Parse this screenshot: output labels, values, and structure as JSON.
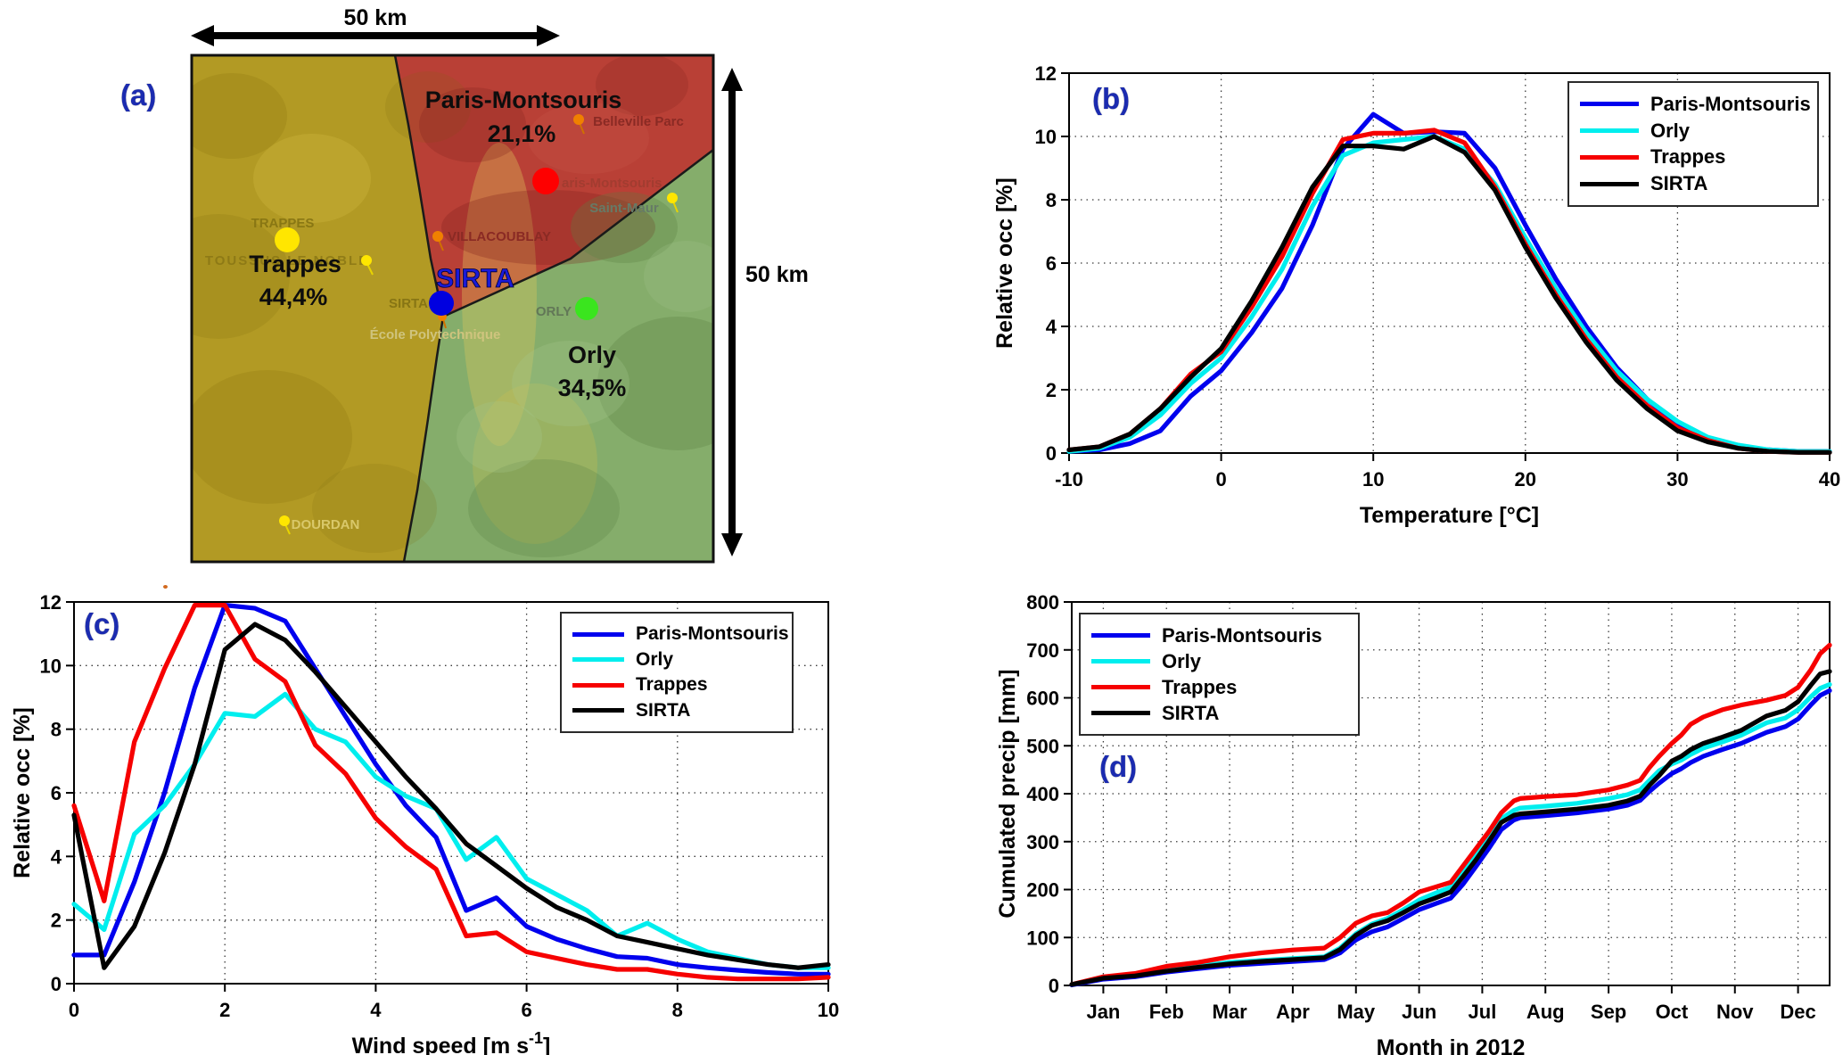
{
  "panel_labels": {
    "a": "(a)",
    "b": "(b)",
    "c": "(c)",
    "d": "(d)"
  },
  "map": {
    "scale_top": "50 km",
    "scale_right": "50 km",
    "region_trappes_name": "Trappes",
    "region_trappes_pct": "44,4%",
    "region_pm_name": "Paris-Montsouris",
    "region_pm_pct": "21,1%",
    "region_orly_name": "Orly",
    "region_orly_pct": "34,5%",
    "sirta_big": "SIRTA",
    "colors": {
      "trappes_region": "#b29a24",
      "pm_region": "#b94036",
      "orly_region": "#85ad6b",
      "trappes_dot": "#ffe600",
      "pm_dot": "#fe0000",
      "sirta_dot": "#0000e0",
      "orly_dot": "#3ae51e"
    },
    "place_labels": {
      "trappes_small": "TRAPPES",
      "toussus": "TOUSSUS LE NOBLE",
      "belleville": "Belleville Parc",
      "pm_partial": "aris-Montsouris",
      "saint_maur": "Saint-Maur",
      "villacoublay": "VILLACOUBLAY",
      "sirta_small": "SIRTA",
      "ecole": "École Polytechnique",
      "orly_small": "ORLY",
      "dourdan": "DOURDAN"
    }
  },
  "chart_data": [
    {
      "id": "b",
      "type": "line",
      "xlabel": "Temperature [°C]",
      "ylabel": "Relative occ [%]",
      "xlim": [
        -10,
        40
      ],
      "ylim": [
        0,
        12
      ],
      "xticks": [
        -10,
        0,
        10,
        20,
        30,
        40
      ],
      "yticks": [
        0,
        2,
        4,
        6,
        8,
        10,
        12
      ],
      "grid": true,
      "legend_position": "top-right",
      "x": [
        -10,
        -8,
        -6,
        -4,
        -2,
        0,
        2,
        4,
        6,
        8,
        10,
        12,
        14,
        16,
        18,
        20,
        22,
        24,
        26,
        28,
        30,
        32,
        34,
        36,
        38,
        40
      ],
      "series": [
        {
          "name": "Paris-Montsouris",
          "color": "#0000ee",
          "values": [
            0.05,
            0.1,
            0.3,
            0.7,
            1.8,
            2.6,
            3.8,
            5.2,
            7.2,
            9.6,
            10.7,
            10.1,
            10.15,
            10.1,
            9.0,
            7.2,
            5.5,
            4.0,
            2.7,
            1.7,
            0.9,
            0.45,
            0.2,
            0.1,
            0.05,
            0.05
          ]
        },
        {
          "name": "Orly",
          "color": "#00eeee",
          "values": [
            0.05,
            0.15,
            0.5,
            1.2,
            2.2,
            3.0,
            4.3,
            5.8,
            7.8,
            9.4,
            9.8,
            9.9,
            10.0,
            9.6,
            8.5,
            6.8,
            5.2,
            3.8,
            2.6,
            1.7,
            1.0,
            0.5,
            0.25,
            0.1,
            0.05,
            0.05
          ]
        },
        {
          "name": "Trappes",
          "color": "#f60000",
          "values": [
            0.1,
            0.2,
            0.6,
            1.4,
            2.5,
            3.2,
            4.6,
            6.2,
            8.2,
            9.9,
            10.1,
            10.1,
            10.2,
            9.8,
            8.4,
            6.6,
            5.0,
            3.6,
            2.4,
            1.5,
            0.8,
            0.4,
            0.15,
            0.05,
            0.02,
            0.02
          ]
        },
        {
          "name": "SIRTA",
          "color": "#000000",
          "values": [
            0.1,
            0.2,
            0.6,
            1.4,
            2.4,
            3.3,
            4.8,
            6.5,
            8.4,
            9.7,
            9.7,
            9.6,
            10.0,
            9.5,
            8.3,
            6.5,
            4.9,
            3.5,
            2.3,
            1.4,
            0.7,
            0.35,
            0.15,
            0.05,
            0.02,
            0.02
          ]
        }
      ]
    },
    {
      "id": "c",
      "type": "line",
      "xlabel_parts": [
        "Wind speed [m s",
        "-1",
        "]"
      ],
      "ylabel": "Relative occ [%]",
      "xlim": [
        0,
        10
      ],
      "ylim": [
        0,
        12
      ],
      "xticks": [
        0,
        2,
        4,
        6,
        8,
        10
      ],
      "yticks": [
        0,
        2,
        4,
        6,
        8,
        10,
        12
      ],
      "grid": true,
      "legend_position": "top-right",
      "x": [
        0,
        0.4,
        0.8,
        1.2,
        1.6,
        2,
        2.4,
        2.8,
        3.2,
        3.6,
        4,
        4.4,
        4.8,
        5.2,
        5.6,
        6,
        6.4,
        6.8,
        7.2,
        7.6,
        8,
        8.4,
        8.8,
        9.2,
        9.6,
        10
      ],
      "series": [
        {
          "name": "Paris-Montsouris",
          "color": "#0000ee",
          "values": [
            0.9,
            0.9,
            3.2,
            6.0,
            9.3,
            11.9,
            11.8,
            11.4,
            9.9,
            8.4,
            6.9,
            5.6,
            4.6,
            2.3,
            2.7,
            1.8,
            1.4,
            1.1,
            0.85,
            0.8,
            0.6,
            0.5,
            0.42,
            0.35,
            0.3,
            0.3
          ]
        },
        {
          "name": "Orly",
          "color": "#00eeee",
          "values": [
            2.5,
            1.7,
            4.7,
            5.6,
            6.9,
            8.5,
            8.4,
            9.1,
            8.0,
            7.6,
            6.5,
            5.9,
            5.5,
            3.9,
            4.6,
            3.3,
            2.8,
            2.3,
            1.5,
            1.9,
            1.4,
            1.0,
            0.8,
            0.6,
            0.5,
            0.5
          ]
        },
        {
          "name": "Trappes",
          "color": "#f60000",
          "values": [
            5.6,
            2.6,
            7.6,
            9.9,
            11.9,
            11.9,
            10.2,
            9.5,
            7.5,
            6.6,
            5.2,
            4.3,
            3.6,
            1.5,
            1.6,
            1.0,
            0.8,
            0.6,
            0.45,
            0.45,
            0.3,
            0.2,
            0.15,
            0.15,
            0.15,
            0.2
          ]
        },
        {
          "name": "SIRTA",
          "color": "#000000",
          "values": [
            5.3,
            0.5,
            1.8,
            4.1,
            6.9,
            10.5,
            11.3,
            10.8,
            9.8,
            8.7,
            7.6,
            6.5,
            5.5,
            4.4,
            3.7,
            3.0,
            2.4,
            2.0,
            1.5,
            1.3,
            1.1,
            0.9,
            0.75,
            0.6,
            0.5,
            0.6
          ]
        }
      ]
    },
    {
      "id": "d",
      "type": "line",
      "xlabel": "Month in 2012",
      "ylabel": "Cumulated precip [mm]",
      "xlim": [
        0,
        12
      ],
      "ylim": [
        0,
        800
      ],
      "xticks": [
        0.5,
        1.5,
        2.5,
        3.5,
        4.5,
        5.5,
        6.5,
        7.5,
        8.5,
        9.5,
        10.5,
        11.5
      ],
      "xtick_labels": [
        "Jan",
        "Feb",
        "Mar",
        "Apr",
        "May",
        "Jun",
        "Jul",
        "Aug",
        "Sep",
        "Oct",
        "Nov",
        "Dec"
      ],
      "yticks": [
        0,
        100,
        200,
        300,
        400,
        500,
        600,
        700,
        800
      ],
      "grid": true,
      "legend_position": "top-left",
      "x": [
        0,
        0.5,
        1,
        1.5,
        2,
        2.5,
        3,
        3.5,
        4,
        4.25,
        4.5,
        4.75,
        5,
        5.25,
        5.5,
        5.75,
        6,
        6.2,
        6.4,
        6.6,
        6.8,
        7,
        7.1,
        7.5,
        8,
        8.5,
        8.8,
        9,
        9.15,
        9.3,
        9.5,
        9.65,
        9.8,
        10,
        10.3,
        10.6,
        11,
        11.3,
        11.5,
        11.7,
        11.85,
        12
      ],
      "series": [
        {
          "name": "Paris-Montsouris",
          "color": "#0000ee",
          "values": [
            1,
            13,
            18,
            28,
            35,
            42,
            46,
            50,
            54,
            68,
            95,
            112,
            122,
            140,
            158,
            170,
            182,
            212,
            248,
            285,
            325,
            345,
            350,
            354,
            360,
            368,
            376,
            386,
            405,
            422,
            442,
            452,
            465,
            478,
            492,
            505,
            528,
            540,
            556,
            585,
            605,
            615
          ]
        },
        {
          "name": "Orly",
          "color": "#00eeee",
          "values": [
            2,
            16,
            22,
            32,
            40,
            48,
            52,
            56,
            60,
            78,
            108,
            128,
            140,
            158,
            178,
            192,
            205,
            238,
            272,
            308,
            348,
            365,
            370,
            374,
            380,
            390,
            398,
            408,
            428,
            448,
            462,
            470,
            482,
            495,
            508,
            522,
            548,
            558,
            575,
            602,
            620,
            628
          ]
        },
        {
          "name": "Trappes",
          "color": "#f60000",
          "values": [
            2,
            18,
            25,
            40,
            48,
            60,
            68,
            74,
            78,
            100,
            130,
            145,
            152,
            172,
            195,
            205,
            215,
            250,
            285,
            320,
            360,
            385,
            390,
            394,
            398,
            408,
            418,
            428,
            455,
            478,
            505,
            522,
            545,
            560,
            575,
            585,
            595,
            605,
            622,
            658,
            692,
            710
          ]
        },
        {
          "name": "SIRTA",
          "color": "#000000",
          "values": [
            2,
            15,
            20,
            30,
            38,
            45,
            50,
            54,
            58,
            75,
            105,
            125,
            135,
            152,
            170,
            182,
            195,
            228,
            262,
            300,
            340,
            355,
            358,
            362,
            368,
            376,
            385,
            395,
            418,
            438,
            468,
            478,
            492,
            505,
            518,
            532,
            562,
            574,
            592,
            626,
            650,
            655
          ]
        }
      ]
    }
  ]
}
